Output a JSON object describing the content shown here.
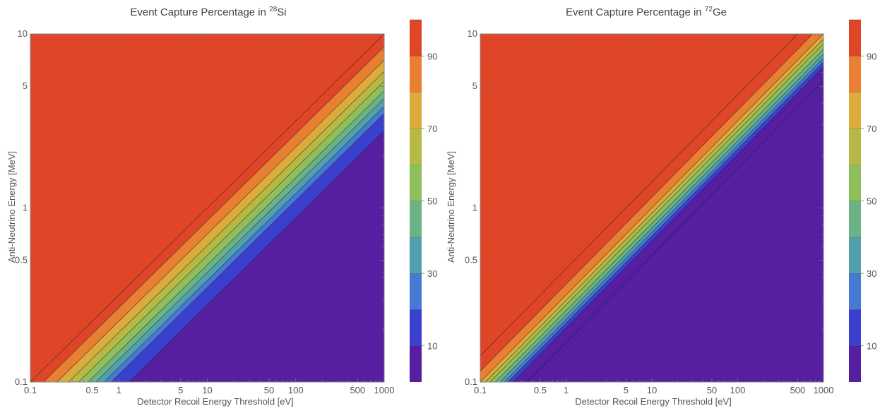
{
  "chart_data": [
    {
      "type": "heatmap",
      "title": "Event Capture Percentage in ",
      "title_sup": "28",
      "title_el": "Si",
      "xlabel": "Detector Recoil Energy Threshold [eV]",
      "ylabel": "Anti-Neutrino Energy [MeV]",
      "xscale": "log",
      "yscale": "log",
      "xlim": [
        0.1,
        1000
      ],
      "ylim": [
        0.1,
        10
      ],
      "xticks": [
        0.1,
        0.5,
        1,
        5,
        10,
        50,
        100,
        500,
        1000
      ],
      "xtick_labels": [
        "0.1",
        "0.5",
        "1",
        "5",
        "10",
        "50",
        "100",
        "500",
        "1000"
      ],
      "yticks": [
        0.1,
        0.5,
        1,
        5,
        10
      ],
      "ytick_labels": [
        "0.1",
        "0.5",
        "1",
        "5",
        "10"
      ],
      "contour_levels_percent": [
        0,
        10,
        20,
        30,
        40,
        50,
        60,
        70,
        80,
        90,
        100
      ],
      "contour_intercepts": [
        {
          "level": 10,
          "threshold_eV_at_0.1MeV": 1.3
        },
        {
          "level": 20,
          "threshold_eV_at_0.1MeV": 0.82
        },
        {
          "level": 30,
          "threshold_eV_at_0.1MeV": 0.68
        },
        {
          "level": 40,
          "threshold_eV_at_0.1MeV": 0.55
        },
        {
          "level": 50,
          "threshold_eV_at_0.1MeV": 0.45
        },
        {
          "level": 60,
          "threshold_eV_at_0.1MeV": 0.35
        },
        {
          "level": 70,
          "threshold_eV_at_0.1MeV": 0.27
        },
        {
          "level": 80,
          "threshold_eV_at_0.1MeV": 0.2
        },
        {
          "level": 90,
          "threshold_eV_at_0.1MeV": 0.14
        },
        {
          "level": 95,
          "threshold_eV_at_0.1MeV": 0.1
        }
      ],
      "colorbar_ticks": [
        10,
        30,
        50,
        70,
        90
      ]
    },
    {
      "type": "heatmap",
      "title": "Event Capture Percentage in ",
      "title_sup": "72",
      "title_el": "Ge",
      "xlabel": "Detector Recoil Energy Threshold [eV]",
      "ylabel": "Anti-Neutrino Energy [MeV]",
      "xscale": "log",
      "yscale": "log",
      "xlim": [
        0.1,
        1000
      ],
      "ylim": [
        0.1,
        10
      ],
      "xticks": [
        0.1,
        0.5,
        1,
        5,
        10,
        50,
        100,
        500,
        1000
      ],
      "xtick_labels": [
        "0.1",
        "0.5",
        "1",
        "5",
        "10",
        "50",
        "100",
        "500",
        "1000"
      ],
      "yticks": [
        0.1,
        0.5,
        1,
        5,
        10
      ],
      "ytick_labels": [
        "0.1",
        "0.5",
        "1",
        "5",
        "10"
      ],
      "contour_levels_percent": [
        0,
        10,
        20,
        30,
        40,
        50,
        60,
        70,
        80,
        90,
        100
      ],
      "contour_intercepts": [
        {
          "level": 5,
          "threshold_eV_at_0.1MeV": 0.35
        },
        {
          "level": 10,
          "threshold_eV_at_0.1MeV": 0.24
        },
        {
          "level": 20,
          "threshold_eV_at_0.1MeV": 0.21
        },
        {
          "level": 30,
          "threshold_eV_at_0.1MeV": 0.19
        },
        {
          "level": 40,
          "threshold_eV_at_0.1MeV": 0.17
        },
        {
          "level": 50,
          "threshold_eV_at_0.1MeV": 0.15
        },
        {
          "level": 60,
          "threshold_eV_at_0.1MeV": 0.13
        },
        {
          "level": 70,
          "threshold_eV_at_0.1MeV": 0.115
        },
        {
          "level": 80,
          "threshold_eV_at_0.1MeV": 0.1
        },
        {
          "level": 90,
          "threshold_eV_at_0.1MeV": 0.075
        },
        {
          "level": 95,
          "threshold_eV_at_0.1MeV": 0.05
        }
      ],
      "colorbar_ticks": [
        10,
        30,
        50,
        70,
        90
      ]
    }
  ],
  "colors": {
    "band_0_10": "#561ea1",
    "band_10_20": "#3a3fce",
    "band_20_30": "#4579d2",
    "band_30_40": "#52a0ae",
    "band_40_50": "#6bb287",
    "band_50_60": "#8fbf5c",
    "band_60_70": "#b6b944",
    "band_70_80": "#dbab3c",
    "band_80_90": "#e87f32",
    "band_90_100": "#df4527"
  }
}
